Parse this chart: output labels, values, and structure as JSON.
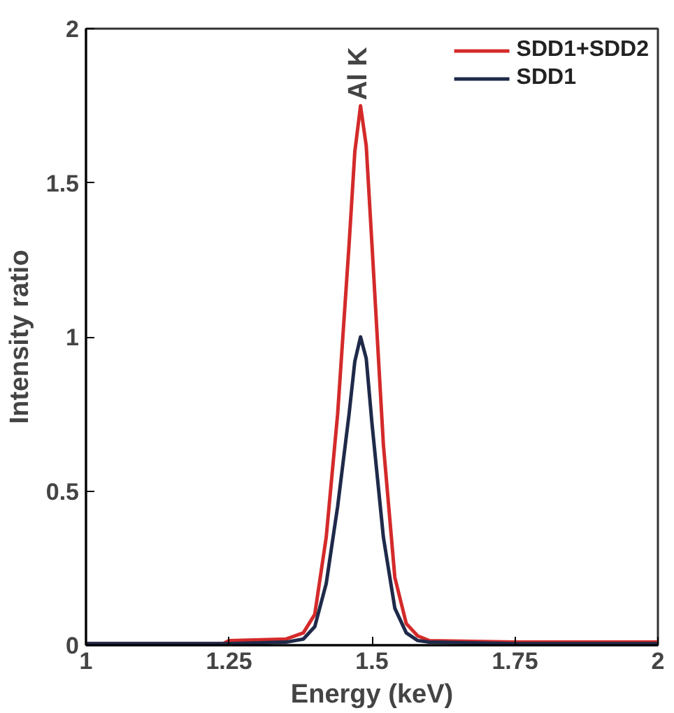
{
  "chart_data": {
    "type": "line",
    "xlabel": "Energy (keV)",
    "ylabel": "Intensity ratio",
    "xlim": [
      1,
      2
    ],
    "ylim": [
      0,
      2
    ],
    "xticks": [
      1,
      1.25,
      1.5,
      1.75,
      2
    ],
    "yticks": [
      0,
      0.5,
      1,
      1.5,
      2
    ],
    "grid": false,
    "legend": "top right",
    "marker": "none",
    "line_style": "solid",
    "annotations": [
      {
        "text": "Al K",
        "x": 1.48,
        "y": 1.75
      }
    ],
    "series": [
      {
        "name": "SDD1+SDD2",
        "color": "#d42a2a",
        "x": [
          1.0,
          1.24,
          1.25,
          1.35,
          1.38,
          1.4,
          1.42,
          1.44,
          1.46,
          1.47,
          1.48,
          1.49,
          1.5,
          1.52,
          1.54,
          1.56,
          1.58,
          1.6,
          1.75,
          2.0
        ],
        "values": [
          0.005,
          0.005,
          0.015,
          0.02,
          0.04,
          0.1,
          0.35,
          0.75,
          1.3,
          1.6,
          1.75,
          1.62,
          1.3,
          0.65,
          0.22,
          0.07,
          0.03,
          0.015,
          0.01,
          0.01
        ]
      },
      {
        "name": "SDD1",
        "color": "#1f2a4a",
        "x": [
          1.0,
          1.25,
          1.35,
          1.38,
          1.4,
          1.42,
          1.44,
          1.46,
          1.47,
          1.48,
          1.49,
          1.5,
          1.52,
          1.54,
          1.56,
          1.58,
          1.6,
          1.75,
          2.0
        ],
        "values": [
          0.005,
          0.005,
          0.01,
          0.02,
          0.06,
          0.2,
          0.45,
          0.75,
          0.92,
          1.0,
          0.93,
          0.72,
          0.35,
          0.12,
          0.04,
          0.015,
          0.01,
          0.005,
          0.005
        ]
      }
    ]
  }
}
